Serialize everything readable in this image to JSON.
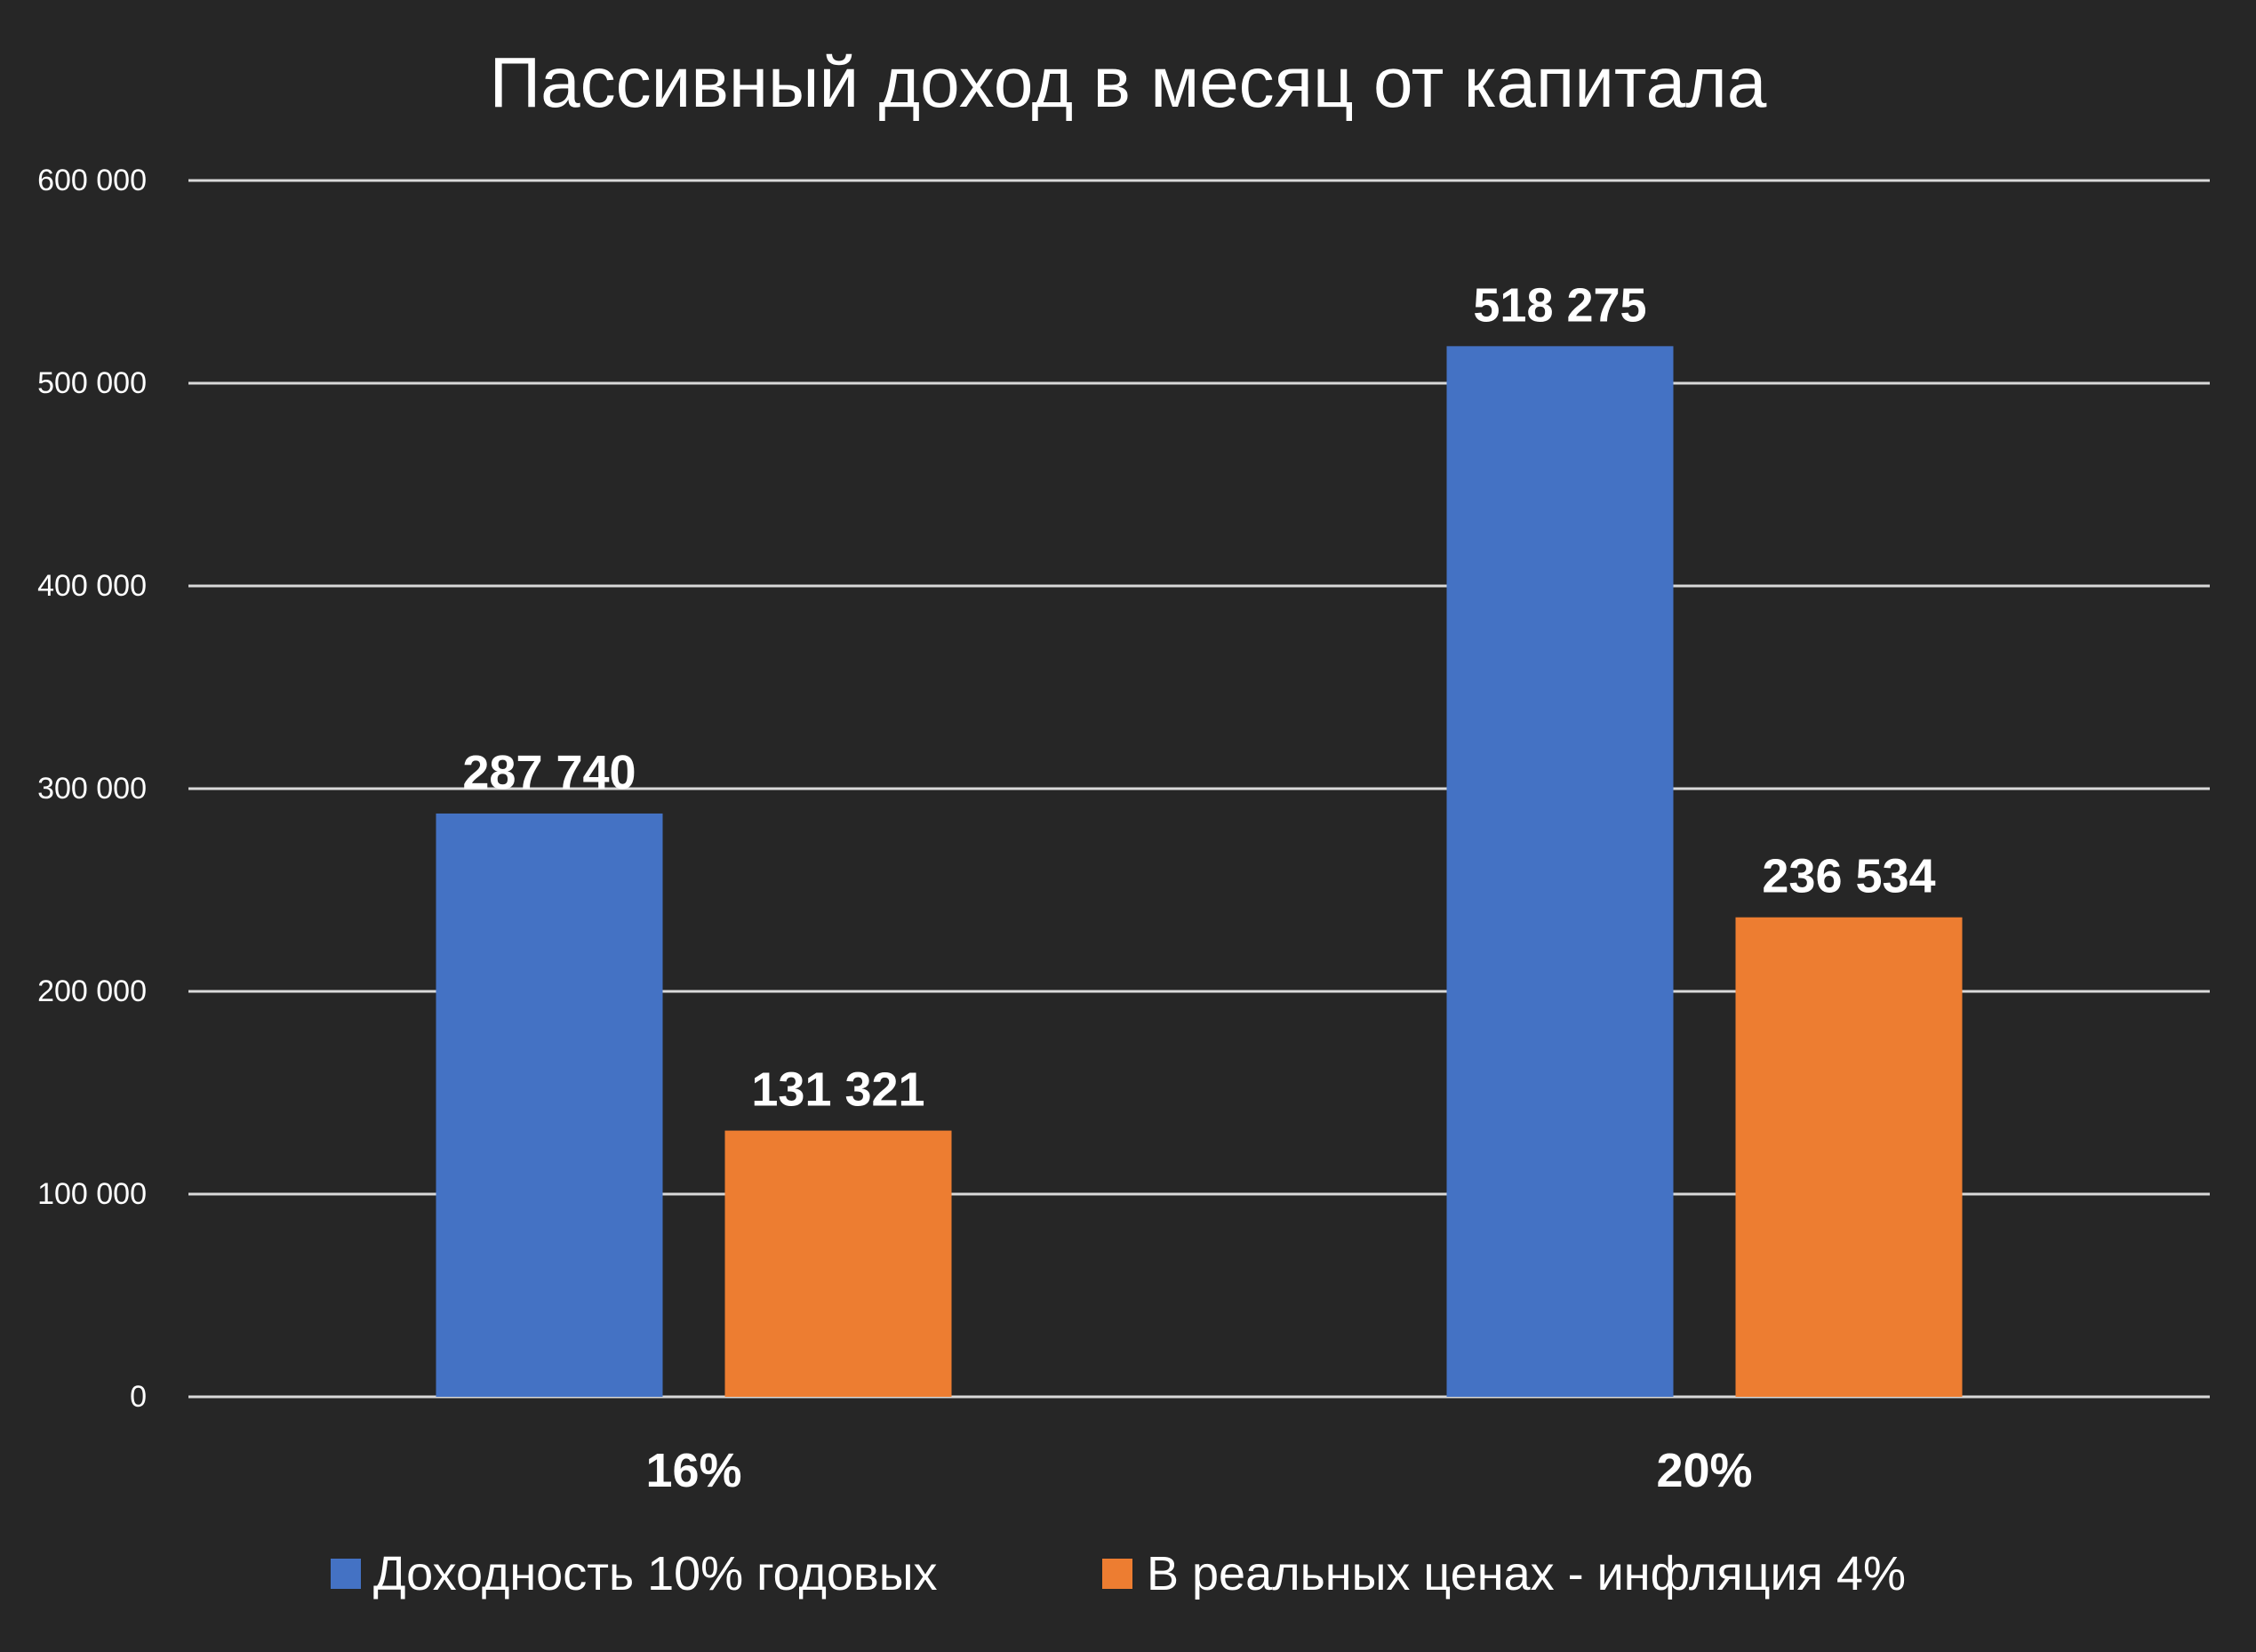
{
  "chart_data": {
    "type": "bar",
    "title": "Пассивный доход в месяц от капитала",
    "xlabel": "",
    "ylabel": "",
    "categories": [
      "16%",
      "20%"
    ],
    "series": [
      {
        "name": "Доходность 10% годовых",
        "values": [
          287740,
          518275
        ],
        "labels": [
          "287 740",
          "518 275"
        ],
        "color": "#4472C4"
      },
      {
        "name": "В реальных ценах - инфляция 4%",
        "values": [
          131321,
          236534
        ],
        "labels": [
          "131 321",
          "236 534"
        ],
        "color": "#ED7D31"
      }
    ],
    "ylim": [
      0,
      600000
    ],
    "yticks": [
      {
        "value": 0,
        "label": "0"
      },
      {
        "value": 100000,
        "label": "100 000"
      },
      {
        "value": 200000,
        "label": "200 000"
      },
      {
        "value": 300000,
        "label": "300 000"
      },
      {
        "value": 400000,
        "label": "400 000"
      },
      {
        "value": 500000,
        "label": "500 000"
      },
      {
        "value": 600000,
        "label": "600 000"
      }
    ],
    "grid": true,
    "legend_position": "bottom"
  },
  "colors": {
    "background": "#262626",
    "text": "#FFFFFF",
    "grid": "#D9D9D9"
  }
}
